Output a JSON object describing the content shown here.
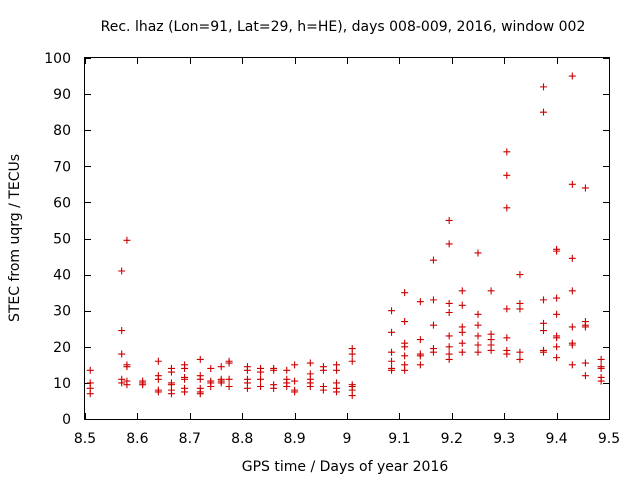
{
  "chart_data": {
    "type": "scatter",
    "title": "Rec. lhaz (Lon=91, Lat=29, h=HE), days 008-009, 2016, window 002",
    "xlabel": "GPS time / Days of year 2016",
    "ylabel": "STEC from uqrg / TECUs",
    "xlim": [
      8.5,
      9.5
    ],
    "ylim": [
      0,
      100
    ],
    "xticks": [
      8.5,
      8.6,
      8.7,
      8.8,
      8.9,
      9.0,
      9.1,
      9.2,
      9.3,
      9.4,
      9.5
    ],
    "xtick_labels": [
      "8.5",
      "8.6",
      "8.7",
      "8.8",
      "8.9",
      "9",
      "9.1",
      "9.2",
      "9.3",
      "9.4",
      "9.5"
    ],
    "yticks": [
      0,
      10,
      20,
      30,
      40,
      50,
      60,
      70,
      80,
      90,
      100
    ],
    "ytick_labels": [
      "0",
      "10",
      "20",
      "30",
      "40",
      "50",
      "60",
      "70",
      "80",
      "90",
      "100"
    ],
    "marker": "+",
    "color": "#cc0000",
    "series": [
      {
        "name": "STEC",
        "points": [
          [
            8.51,
            13.5
          ],
          [
            8.51,
            10
          ],
          [
            8.51,
            8.5
          ],
          [
            8.51,
            7
          ],
          [
            8.57,
            41
          ],
          [
            8.57,
            24.5
          ],
          [
            8.57,
            18
          ],
          [
            8.57,
            11
          ],
          [
            8.57,
            10
          ],
          [
            8.58,
            49.5
          ],
          [
            8.58,
            15
          ],
          [
            8.58,
            14.5
          ],
          [
            8.58,
            10.5
          ],
          [
            8.58,
            9.5
          ],
          [
            8.61,
            10.5
          ],
          [
            8.61,
            10
          ],
          [
            8.61,
            9.5
          ],
          [
            8.64,
            16
          ],
          [
            8.64,
            12
          ],
          [
            8.64,
            11
          ],
          [
            8.64,
            8
          ],
          [
            8.64,
            7.5
          ],
          [
            8.665,
            14
          ],
          [
            8.665,
            13
          ],
          [
            8.665,
            10
          ],
          [
            8.665,
            9.5
          ],
          [
            8.665,
            8
          ],
          [
            8.665,
            7
          ],
          [
            8.69,
            15
          ],
          [
            8.69,
            14
          ],
          [
            8.69,
            11.5
          ],
          [
            8.69,
            11
          ],
          [
            8.69,
            8.5
          ],
          [
            8.69,
            7.5
          ],
          [
            8.72,
            16.5
          ],
          [
            8.72,
            12
          ],
          [
            8.72,
            11
          ],
          [
            8.72,
            8.5
          ],
          [
            8.72,
            7.5
          ],
          [
            8.72,
            7
          ],
          [
            8.74,
            14
          ],
          [
            8.74,
            10.5
          ],
          [
            8.74,
            10
          ],
          [
            8.74,
            9
          ],
          [
            8.76,
            14.5
          ],
          [
            8.76,
            11
          ],
          [
            8.76,
            10.5
          ],
          [
            8.76,
            10
          ],
          [
            8.775,
            16
          ],
          [
            8.775,
            15.5
          ],
          [
            8.775,
            11
          ],
          [
            8.775,
            9
          ],
          [
            8.81,
            14.5
          ],
          [
            8.81,
            13.5
          ],
          [
            8.81,
            11
          ],
          [
            8.81,
            10
          ],
          [
            8.81,
            8.5
          ],
          [
            8.835,
            14
          ],
          [
            8.835,
            13
          ],
          [
            8.835,
            11
          ],
          [
            8.835,
            9
          ],
          [
            8.86,
            14
          ],
          [
            8.86,
            13.5
          ],
          [
            8.86,
            9.5
          ],
          [
            8.86,
            8.5
          ],
          [
            8.885,
            13.5
          ],
          [
            8.885,
            11
          ],
          [
            8.885,
            10
          ],
          [
            8.885,
            9
          ],
          [
            8.9,
            15
          ],
          [
            8.9,
            10.5
          ],
          [
            8.9,
            8
          ],
          [
            8.9,
            7.5
          ],
          [
            8.93,
            15.5
          ],
          [
            8.93,
            12.5
          ],
          [
            8.93,
            11
          ],
          [
            8.93,
            10
          ],
          [
            8.93,
            9
          ],
          [
            8.955,
            14.5
          ],
          [
            8.955,
            13.5
          ],
          [
            8.955,
            9
          ],
          [
            8.955,
            8
          ],
          [
            8.98,
            15
          ],
          [
            8.98,
            13.5
          ],
          [
            8.98,
            10
          ],
          [
            8.98,
            8.5
          ],
          [
            8.98,
            7.5
          ],
          [
            9.01,
            19.5
          ],
          [
            9.01,
            18
          ],
          [
            9.01,
            16
          ],
          [
            9.01,
            9.5
          ],
          [
            9.01,
            9
          ],
          [
            9.01,
            8
          ],
          [
            9.01,
            6.5
          ],
          [
            9.085,
            30
          ],
          [
            9.085,
            24
          ],
          [
            9.085,
            18.5
          ],
          [
            9.085,
            16
          ],
          [
            9.085,
            14
          ],
          [
            9.085,
            13.5
          ],
          [
            9.11,
            35
          ],
          [
            9.11,
            27
          ],
          [
            9.11,
            21
          ],
          [
            9.11,
            20
          ],
          [
            9.11,
            17.5
          ],
          [
            9.11,
            15
          ],
          [
            9.11,
            13.5
          ],
          [
            9.14,
            32.5
          ],
          [
            9.14,
            22
          ],
          [
            9.14,
            18
          ],
          [
            9.14,
            17.5
          ],
          [
            9.14,
            15
          ],
          [
            9.165,
            44
          ],
          [
            9.165,
            33
          ],
          [
            9.165,
            26
          ],
          [
            9.165,
            19.5
          ],
          [
            9.165,
            18.5
          ],
          [
            9.195,
            55
          ],
          [
            9.195,
            48.5
          ],
          [
            9.195,
            32
          ],
          [
            9.195,
            29.5
          ],
          [
            9.195,
            23
          ],
          [
            9.195,
            20
          ],
          [
            9.195,
            18
          ],
          [
            9.195,
            16.5
          ],
          [
            9.22,
            35.5
          ],
          [
            9.22,
            31.5
          ],
          [
            9.22,
            25.5
          ],
          [
            9.22,
            24
          ],
          [
            9.22,
            21
          ],
          [
            9.22,
            18.5
          ],
          [
            9.25,
            46
          ],
          [
            9.25,
            29
          ],
          [
            9.25,
            26
          ],
          [
            9.25,
            23
          ],
          [
            9.25,
            20.5
          ],
          [
            9.25,
            18.5
          ],
          [
            9.275,
            35.5
          ],
          [
            9.275,
            23.5
          ],
          [
            9.275,
            22
          ],
          [
            9.275,
            20.5
          ],
          [
            9.275,
            19
          ],
          [
            9.305,
            74
          ],
          [
            9.305,
            67.5
          ],
          [
            9.305,
            58.5
          ],
          [
            9.305,
            30.5
          ],
          [
            9.305,
            22.5
          ],
          [
            9.305,
            19
          ],
          [
            9.305,
            18
          ],
          [
            9.33,
            40
          ],
          [
            9.33,
            32
          ],
          [
            9.33,
            30.5
          ],
          [
            9.33,
            18.5
          ],
          [
            9.33,
            16.5
          ],
          [
            9.375,
            92
          ],
          [
            9.375,
            85
          ],
          [
            9.375,
            33
          ],
          [
            9.375,
            26.5
          ],
          [
            9.375,
            24.5
          ],
          [
            9.375,
            19
          ],
          [
            9.375,
            18.5
          ],
          [
            9.4,
            47
          ],
          [
            9.4,
            46.5
          ],
          [
            9.4,
            33.5
          ],
          [
            9.4,
            29
          ],
          [
            9.4,
            23
          ],
          [
            9.4,
            22.5
          ],
          [
            9.4,
            20
          ],
          [
            9.4,
            17
          ],
          [
            9.43,
            95
          ],
          [
            9.43,
            65
          ],
          [
            9.43,
            44.5
          ],
          [
            9.43,
            35.5
          ],
          [
            9.43,
            25.5
          ],
          [
            9.43,
            21
          ],
          [
            9.43,
            20.5
          ],
          [
            9.43,
            15
          ],
          [
            9.455,
            64
          ],
          [
            9.455,
            27
          ],
          [
            9.455,
            26
          ],
          [
            9.455,
            25.5
          ],
          [
            9.455,
            15.5
          ],
          [
            9.455,
            12
          ],
          [
            9.485,
            16.5
          ],
          [
            9.485,
            14.5
          ],
          [
            9.485,
            14
          ],
          [
            9.485,
            11.5
          ],
          [
            9.485,
            10.5
          ]
        ]
      }
    ]
  }
}
